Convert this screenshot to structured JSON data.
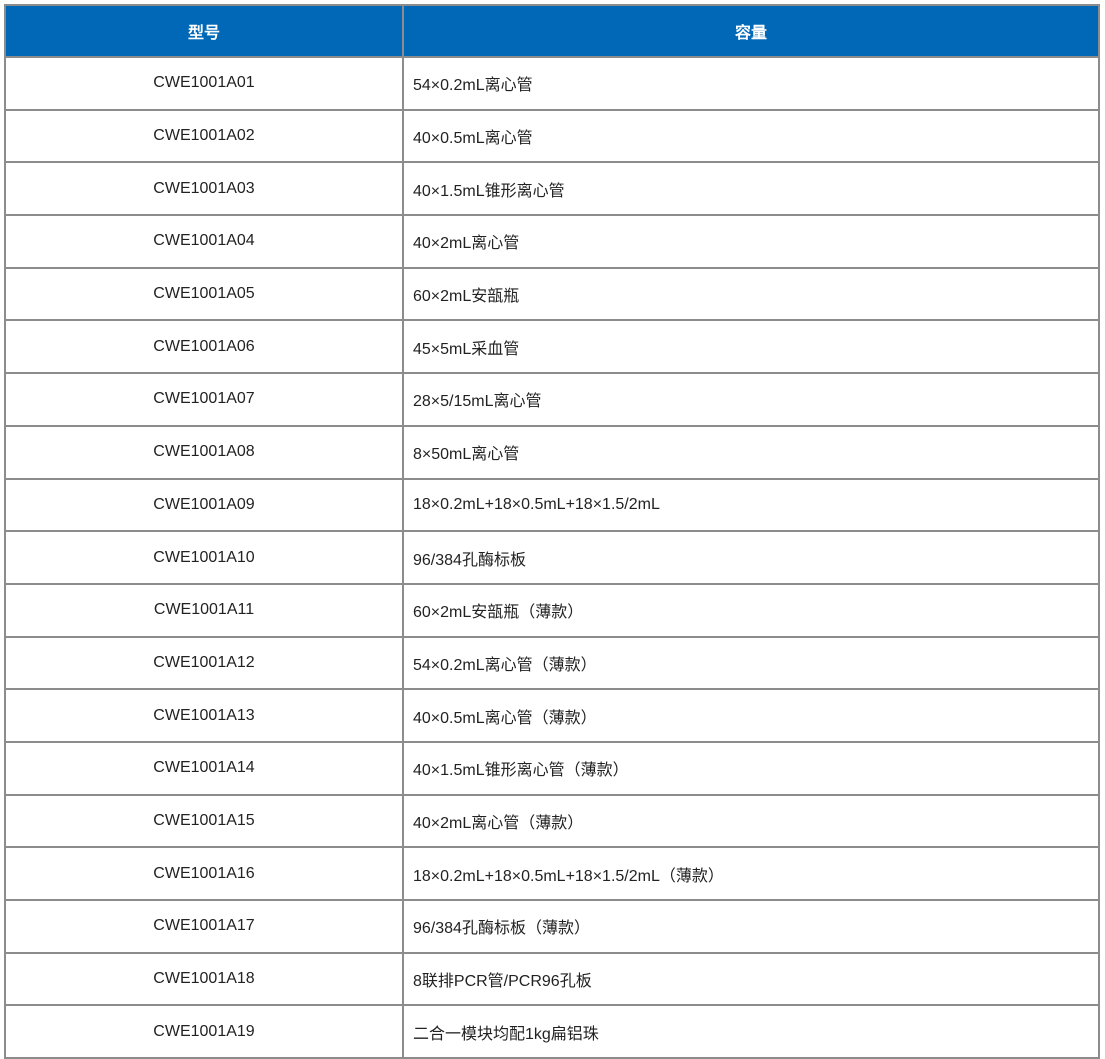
{
  "colors": {
    "header_bg": "#0068b7",
    "header_text": "#ffffff",
    "border": "#8c8c8c"
  },
  "table": {
    "headers": [
      "型号",
      "容量"
    ],
    "rows": [
      [
        "CWE1001A01",
        "54×0.2mL离心管"
      ],
      [
        "CWE1001A02",
        "40×0.5mL离心管"
      ],
      [
        "CWE1001A03",
        "40×1.5mL锥形离心管"
      ],
      [
        "CWE1001A04",
        "40×2mL离心管"
      ],
      [
        "CWE1001A05",
        "60×2mL安瓿瓶"
      ],
      [
        "CWE1001A06",
        "45×5mL采血管"
      ],
      [
        "CWE1001A07",
        "28×5/15mL离心管"
      ],
      [
        "CWE1001A08",
        "8×50mL离心管"
      ],
      [
        "CWE1001A09",
        "18×0.2mL+18×0.5mL+18×1.5/2mL"
      ],
      [
        "CWE1001A10",
        "96/384孔酶标板"
      ],
      [
        "CWE1001A11",
        "60×2mL安瓿瓶（薄款）"
      ],
      [
        "CWE1001A12",
        "54×0.2mL离心管（薄款）"
      ],
      [
        "CWE1001A13",
        "40×0.5mL离心管（薄款）"
      ],
      [
        "CWE1001A14",
        "40×1.5mL锥形离心管（薄款）"
      ],
      [
        "CWE1001A15",
        "40×2mL离心管（薄款）"
      ],
      [
        "CWE1001A16",
        "18×0.2mL+18×0.5mL+18×1.5/2mL（薄款）"
      ],
      [
        "CWE1001A17",
        "96/384孔酶标板（薄款）"
      ],
      [
        "CWE1001A18",
        "8联排PCR管/PCR96孔板"
      ],
      [
        "CWE1001A19",
        "二合一模块均配1kg扁铝珠"
      ]
    ]
  }
}
